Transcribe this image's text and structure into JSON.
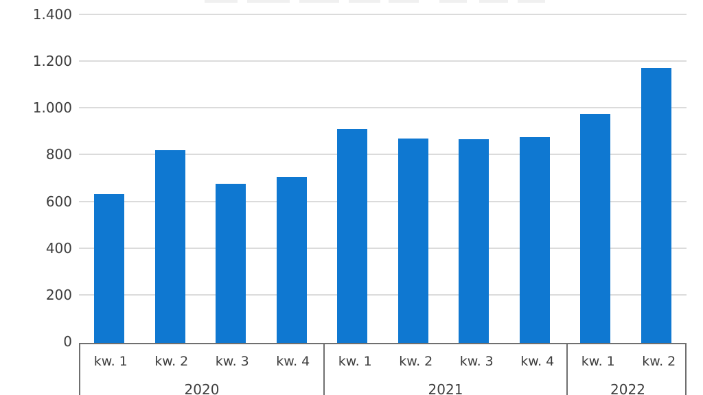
{
  "chart_data": {
    "type": "bar",
    "title": "",
    "xlabel": "",
    "ylabel": "",
    "ylim": [
      0,
      1400
    ],
    "grid": "horizontal",
    "legend": "none",
    "bar_color": "#0f78d1",
    "gridline_color": "#dbdbdb",
    "axis_box_border_color": "#6f6f6f",
    "text_color": "#3d3d3d",
    "y_ticks": [
      {
        "value": 0,
        "label": "0"
      },
      {
        "value": 200,
        "label": "200"
      },
      {
        "value": 400,
        "label": "400"
      },
      {
        "value": 600,
        "label": "600"
      },
      {
        "value": 800,
        "label": "800"
      },
      {
        "value": 1000,
        "label": "1.000"
      },
      {
        "value": 1200,
        "label": "1.200"
      },
      {
        "value": 1400,
        "label": "1.400"
      }
    ],
    "groups": [
      {
        "year": "2020",
        "categories": [
          "kw. 1",
          "kw. 2",
          "kw. 3",
          "kw. 4"
        ],
        "values": [
          630,
          820,
          675,
          705
        ]
      },
      {
        "year": "2021",
        "categories": [
          "kw. 1",
          "kw. 2",
          "kw. 3",
          "kw. 4"
        ],
        "values": [
          910,
          870,
          865,
          875
        ]
      },
      {
        "year": "2022",
        "categories": [
          "kw. 1",
          "kw. 2"
        ],
        "values": [
          975,
          1170
        ]
      }
    ]
  }
}
